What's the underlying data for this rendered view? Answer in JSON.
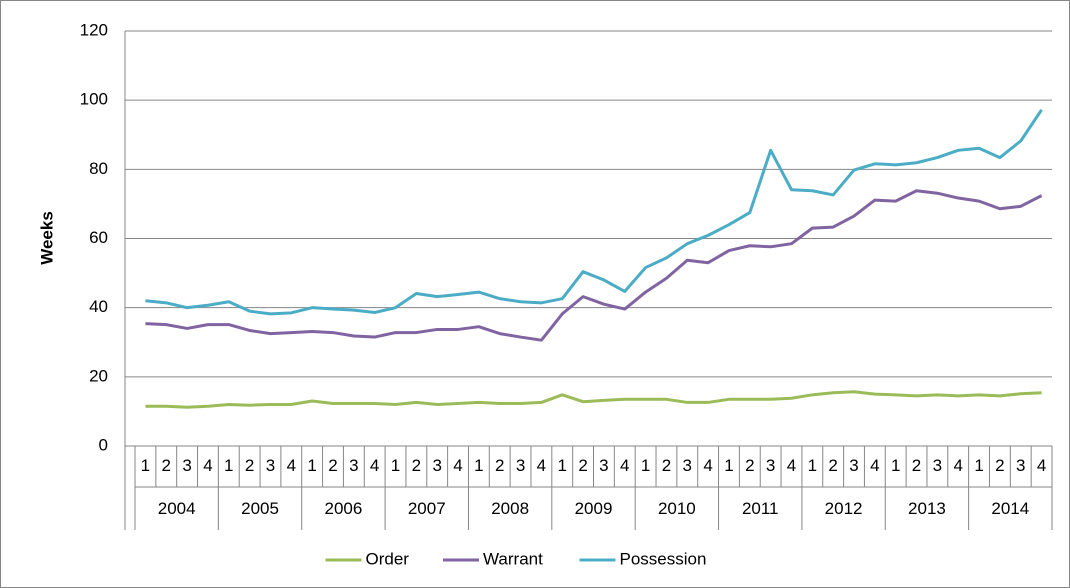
{
  "chart_data": {
    "type": "line",
    "y_label": "Weeks",
    "categories": [
      "1",
      "2",
      "3",
      "4",
      "1",
      "2",
      "3",
      "4",
      "1",
      "2",
      "3",
      "4",
      "1",
      "2",
      "3",
      "4",
      "1",
      "2",
      "3",
      "4",
      "1",
      "2",
      "3",
      "4",
      "1",
      "2",
      "3",
      "4",
      "1",
      "2",
      "3",
      "4",
      "1",
      "2",
      "3",
      "4",
      "1",
      "2",
      "3",
      "4",
      "1",
      "2",
      "3",
      "4"
    ],
    "category_groups": [
      "2004",
      "2005",
      "2006",
      "2007",
      "2008",
      "2009",
      "2010",
      "2011",
      "2012",
      "2013",
      "2014"
    ],
    "series": [
      {
        "name": "Order",
        "color": "#9bbb59",
        "values": [
          11.5,
          11.5,
          11.2,
          11.5,
          12,
          11.8,
          12,
          12,
          13,
          12.3,
          12.3,
          12.3,
          12,
          12.6,
          12,
          12.3,
          12.6,
          12.3,
          12.3,
          12.6,
          14.8,
          12.8,
          13.2,
          13.5,
          13.5,
          13.5,
          12.6,
          12.6,
          13.5,
          13.5,
          13.5,
          13.8,
          14.8,
          15.4,
          15.7,
          15,
          14.8,
          14.5,
          14.8,
          14.5,
          14.8,
          14.5,
          15.1,
          15.4
        ]
      },
      {
        "name": "Warrant",
        "color": "#8064a2",
        "values": [
          35.4,
          35.1,
          34,
          35.1,
          35.1,
          33.4,
          32.5,
          32.8,
          33.1,
          32.8,
          31.8,
          31.5,
          32.8,
          32.8,
          33.7,
          33.7,
          34.5,
          32.5,
          31.5,
          30.6,
          38.2,
          43.2,
          41,
          39.6,
          44.5,
          48.5,
          53.7,
          53,
          56.5,
          57.9,
          57.6,
          58.5,
          63,
          63.3,
          66.5,
          71.1,
          70.8,
          73.8,
          73.1,
          71.7,
          70.8,
          68.6,
          69.3,
          72.4
        ]
      },
      {
        "name": "Possession",
        "color": "#4bacc6",
        "values": [
          42,
          41.4,
          40,
          40.7,
          41.7,
          39,
          38.2,
          38.5,
          40,
          39.6,
          39.3,
          38.6,
          40,
          44.1,
          43.2,
          43.8,
          44.5,
          42.6,
          41.7,
          41.4,
          42.6,
          50.4,
          48,
          44.7,
          51.6,
          54.4,
          58.5,
          60.9,
          64,
          67.5,
          85.5,
          74.1,
          73.8,
          72.6,
          79.8,
          81.6,
          81.3,
          81.9,
          83.4,
          85.5,
          86.1,
          83.4,
          88.2,
          97.2
        ]
      }
    ],
    "ylim": [
      0,
      120
    ],
    "yticks": [
      0,
      20,
      40,
      60,
      80,
      100,
      120
    ],
    "grid": true,
    "legend": "bottom"
  }
}
